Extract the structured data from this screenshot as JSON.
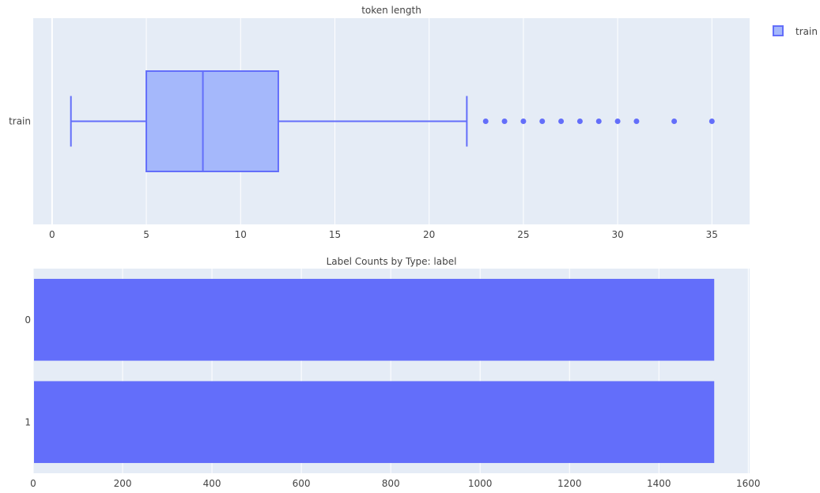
{
  "chart_data": [
    {
      "type": "box",
      "title": "token length",
      "xlabel": "",
      "ylabel": "",
      "xlim": [
        -1,
        37
      ],
      "x_ticks": [
        0,
        5,
        10,
        15,
        20,
        25,
        30,
        35
      ],
      "legend": {
        "placement": "top-right",
        "entries": [
          "train"
        ]
      },
      "grid": true,
      "series": [
        {
          "name": "train",
          "category": "train",
          "min": 1,
          "q1": 5,
          "median": 8,
          "q3": 12,
          "max": 22,
          "outliers": [
            23,
            24,
            25,
            26,
            27,
            28,
            29,
            30,
            31,
            33,
            35
          ]
        }
      ],
      "colors": {
        "line": "#636efa",
        "fill": "#a5b8fb",
        "plot_bg": "#e5ecf6",
        "grid": "#ffffff"
      }
    },
    {
      "type": "bar",
      "orientation": "horizontal",
      "title": "Label Counts by Type: label",
      "xlabel": "",
      "ylabel": "",
      "xlim": [
        0,
        1600
      ],
      "x_ticks": [
        0,
        200,
        400,
        600,
        800,
        1000,
        1200,
        1400,
        1600
      ],
      "categories": [
        "0",
        "1"
      ],
      "values": [
        1522,
        1522
      ],
      "grid": true,
      "colors": {
        "bar": "#636efa",
        "plot_bg": "#e5ecf6",
        "grid": "#ffffff"
      }
    }
  ]
}
